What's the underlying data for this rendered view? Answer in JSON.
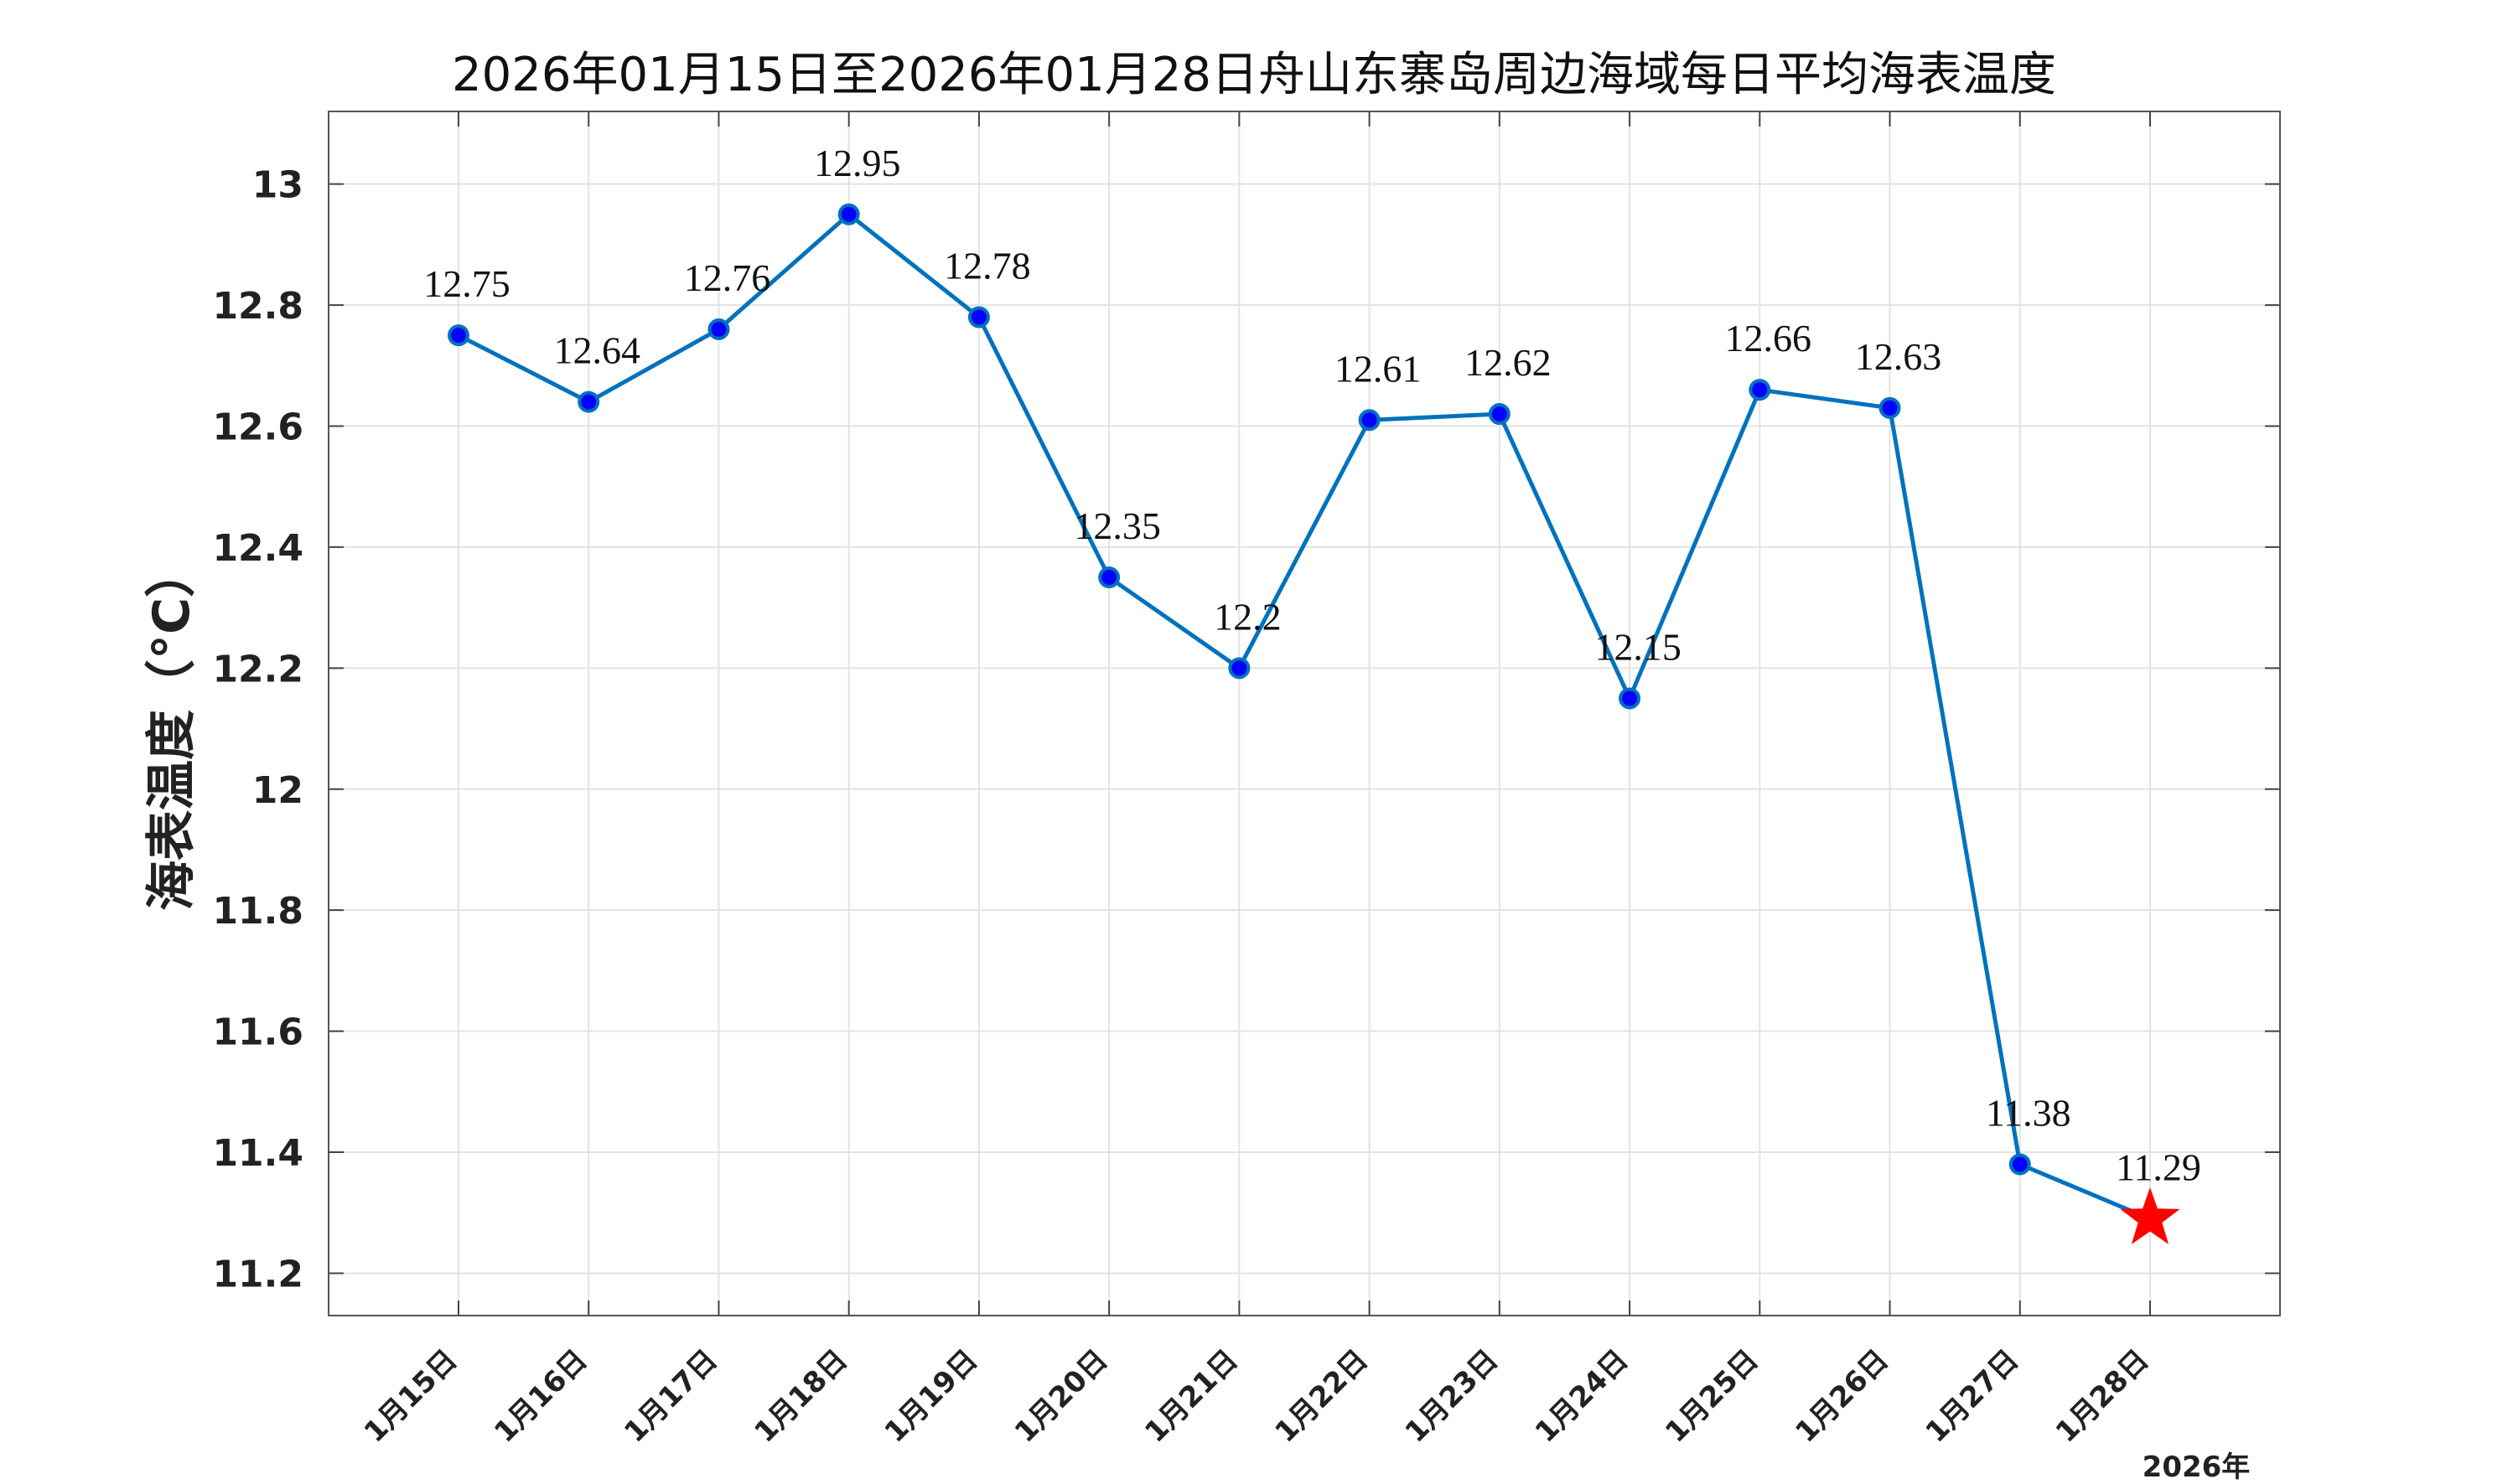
{
  "chart_data": {
    "type": "line",
    "title": "2026年01月15日至2026年01月28日舟山东寨岛周边海域每日平均海表温度",
    "ylabel": "海表温度（°C）",
    "xlabel": "",
    "x_year_label": "2026年",
    "categories": [
      "1月15日",
      "1月16日",
      "1月17日",
      "1月18日",
      "1月19日",
      "1月20日",
      "1月21日",
      "1月22日",
      "1月23日",
      "1月24日",
      "1月25日",
      "1月26日",
      "1月27日",
      "1月28日"
    ],
    "values": [
      12.75,
      12.64,
      12.76,
      12.95,
      12.78,
      12.35,
      12.2,
      12.61,
      12.62,
      12.15,
      12.66,
      12.63,
      11.38,
      11.29
    ],
    "value_labels": [
      "12.75",
      "12.64",
      "12.76",
      "12.95",
      "12.78",
      "12.35",
      "12.2",
      "12.61",
      "12.62",
      "12.15",
      "12.66",
      "12.63",
      "11.38",
      "11.29"
    ],
    "ylim": [
      11.13,
      13.12
    ],
    "yticks": [
      11.2,
      11.4,
      11.6,
      11.8,
      12,
      12.2,
      12.4,
      12.6,
      12.8,
      13
    ],
    "ytick_labels": [
      "11.2",
      "11.4",
      "11.6",
      "11.8",
      "12",
      "12.2",
      "12.4",
      "12.6",
      "12.8",
      "13"
    ],
    "grid": true,
    "line_color": "#0072BD",
    "marker_fill": "#0000FF",
    "marker_edge": "#0072BD",
    "last_point_marker": "star",
    "star_color": "#FF0000"
  }
}
